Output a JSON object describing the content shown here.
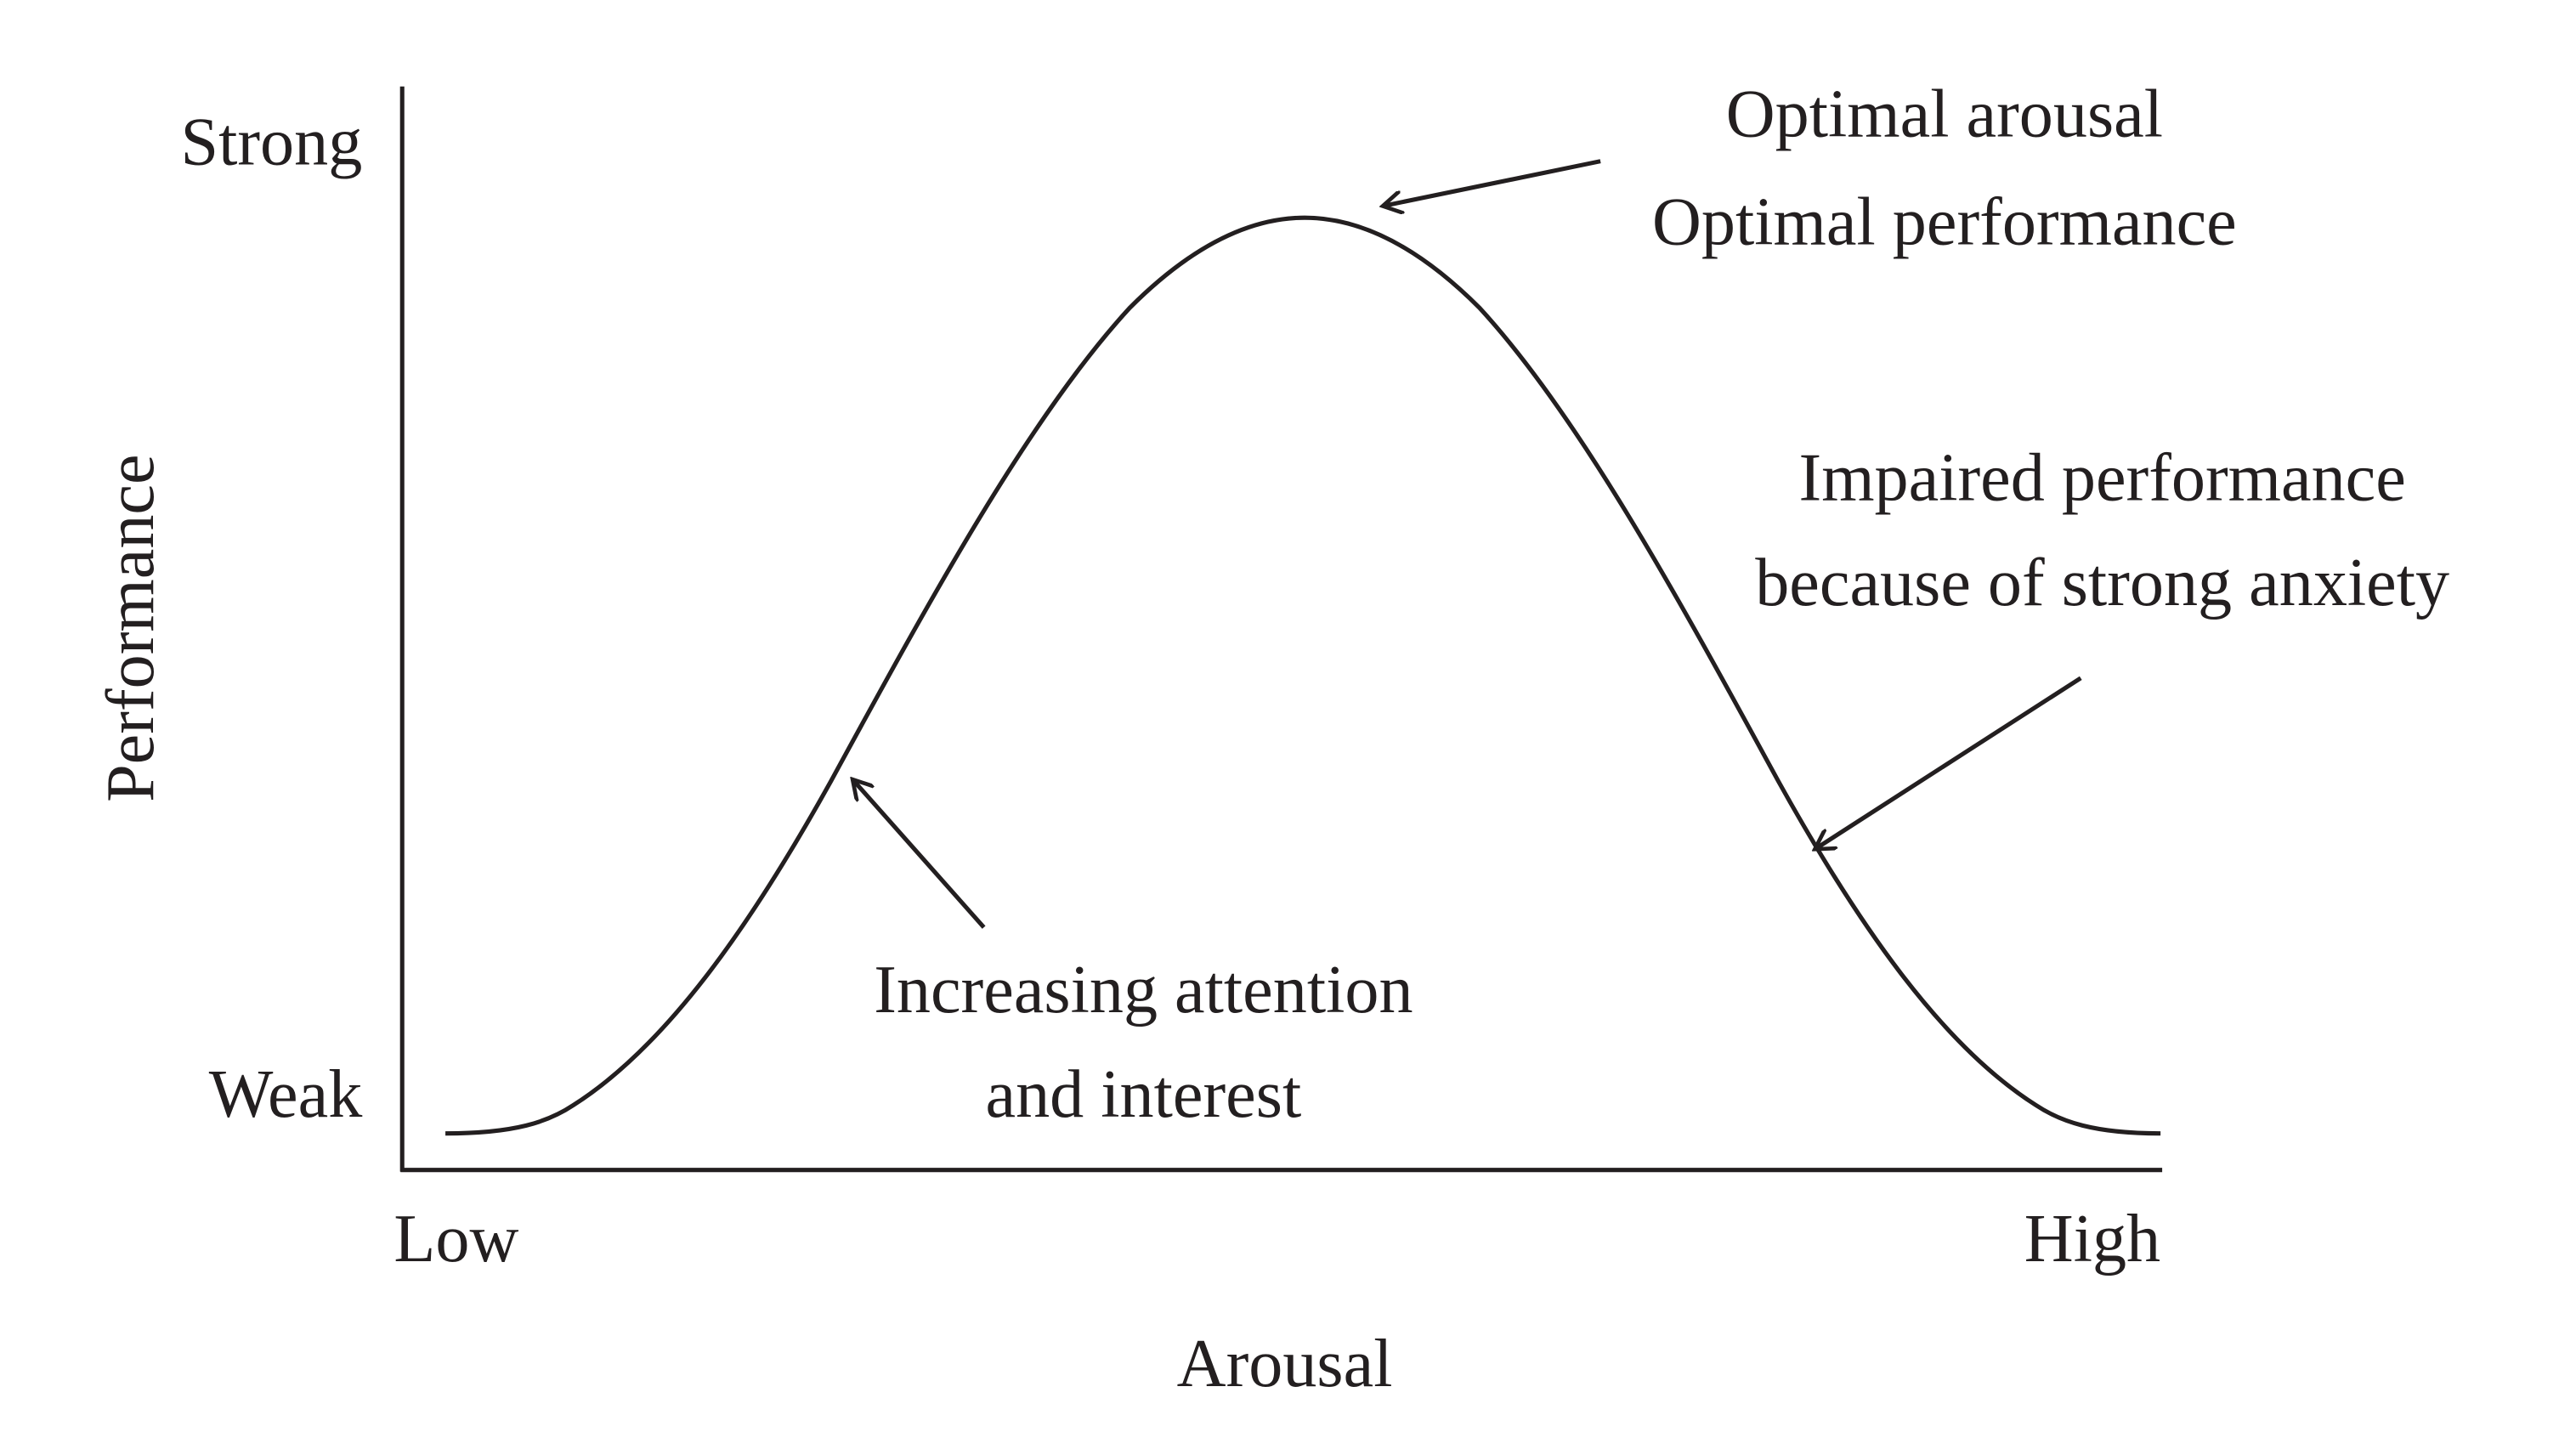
{
  "y_axis": {
    "title": "Performance",
    "top_label": "Strong",
    "bottom_label": "Weak"
  },
  "x_axis": {
    "title": "Arousal",
    "left_label": "Low",
    "right_label": "High"
  },
  "annotations": [
    {
      "lines": [
        "Optimal arousal",
        "Optimal performance"
      ]
    },
    {
      "lines": [
        "Impaired performance",
        "because of strong anxiety"
      ]
    },
    {
      "lines": [
        "Increasing attention",
        "and interest"
      ]
    }
  ]
}
